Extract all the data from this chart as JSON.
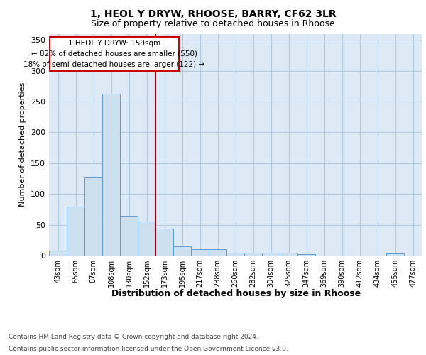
{
  "title1": "1, HEOL Y DRYW, RHOOSE, BARRY, CF62 3LR",
  "title2": "Size of property relative to detached houses in Rhoose",
  "xlabel": "Distribution of detached houses by size in Rhoose",
  "ylabel": "Number of detached properties",
  "categories": [
    "43sqm",
    "65sqm",
    "87sqm",
    "108sqm",
    "130sqm",
    "152sqm",
    "173sqm",
    "195sqm",
    "217sqm",
    "238sqm",
    "260sqm",
    "282sqm",
    "304sqm",
    "325sqm",
    "347sqm",
    "369sqm",
    "390sqm",
    "412sqm",
    "434sqm",
    "455sqm",
    "477sqm"
  ],
  "values": [
    8,
    80,
    128,
    263,
    65,
    55,
    44,
    15,
    10,
    10,
    5,
    5,
    5,
    5,
    2,
    0,
    0,
    0,
    0,
    3,
    0
  ],
  "bar_color": "#cce0f0",
  "bar_edge_color": "#5b9bd5",
  "grid_color": "#b0c8e0",
  "vline_x": 5.5,
  "vline_color": "#990000",
  "annotation_text": "1 HEOL Y DRYW: 159sqm\n← 82% of detached houses are smaller (550)\n18% of semi-detached houses are larger (122) →",
  "annotation_box_color": "#ffffff",
  "annotation_box_edge": "#cc0000",
  "footer1": "Contains HM Land Registry data © Crown copyright and database right 2024.",
  "footer2": "Contains public sector information licensed under the Open Government Licence v3.0.",
  "ylim": [
    0,
    360
  ],
  "yticks": [
    0,
    50,
    100,
    150,
    200,
    250,
    300,
    350
  ],
  "background_color": "#ddeaf5"
}
